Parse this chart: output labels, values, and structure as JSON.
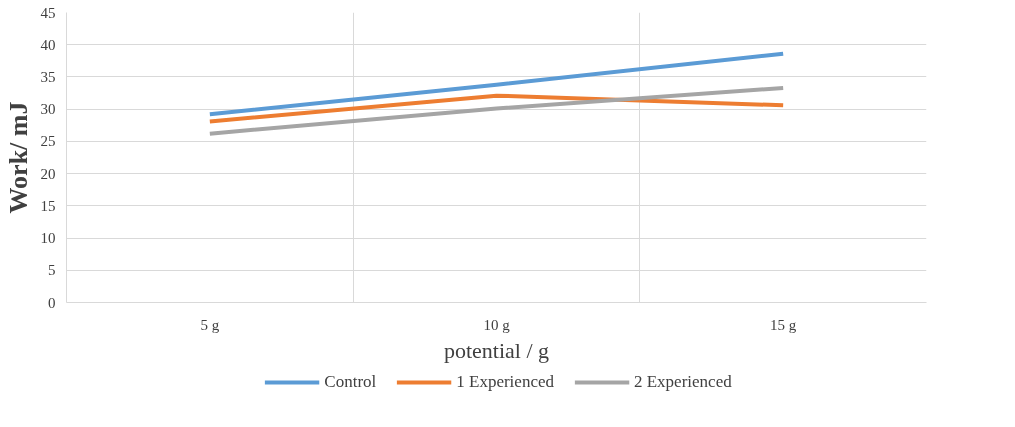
{
  "chart_data": {
    "type": "line",
    "xlabel": "potential / g",
    "ylabel": "Work/ mJ",
    "categories": [
      "5 g",
      "10 g",
      "15 g"
    ],
    "series": [
      {
        "name": "Control",
        "color": "#5b9bd5",
        "values": [
          29.2,
          33.8,
          38.6
        ]
      },
      {
        "name": "1 Experienced",
        "color": "#ed7d31",
        "values": [
          28.1,
          32.1,
          30.6
        ]
      },
      {
        "name": "2 Experienced",
        "color": "#a5a5a5",
        "values": [
          26.2,
          30.1,
          33.3
        ]
      }
    ],
    "ylim": [
      0,
      45
    ],
    "yticks": [
      0,
      5,
      10,
      15,
      20,
      25,
      30,
      35,
      40,
      45
    ],
    "grid": true,
    "legend": "bottom",
    "marker": "none",
    "line_style": "solid"
  }
}
